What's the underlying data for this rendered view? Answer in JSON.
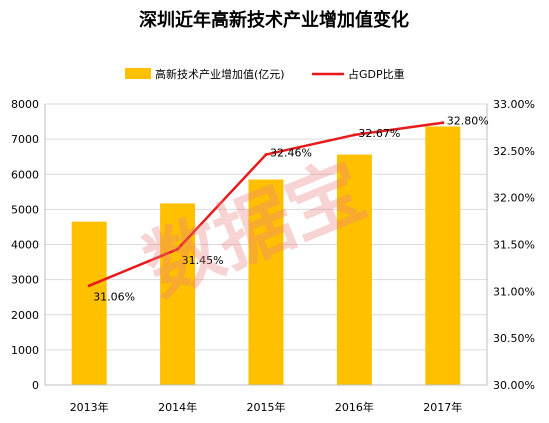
{
  "chart_data": {
    "type": "bar+line",
    "title": "深圳近年高新技术产业增加值变化",
    "categories": [
      "2013年",
      "2014年",
      "2015年",
      "2016年",
      "2017年"
    ],
    "series": [
      {
        "name": "高新技术产业增加值(亿元)",
        "type": "bar",
        "axis": "left",
        "color": "#FFC000",
        "values": [
          4650,
          5170,
          5850,
          6560,
          7360
        ]
      },
      {
        "name": "占GDP比重",
        "type": "line",
        "axis": "right",
        "color": "#E8191B",
        "values": [
          31.06,
          31.45,
          32.46,
          32.67,
          32.8
        ],
        "labels": [
          "31.06%",
          "31.45%",
          "32.46%",
          "32.67%",
          "32.80%"
        ]
      }
    ],
    "y_left": {
      "min": 0,
      "max": 8000,
      "ticks": [
        "0",
        "1000",
        "2000",
        "3000",
        "4000",
        "5000",
        "6000",
        "7000",
        "8000"
      ]
    },
    "y_right": {
      "min": 30,
      "max": 33,
      "ticks": [
        "30.00%",
        "30.50%",
        "31.00%",
        "31.50%",
        "32.00%",
        "32.50%",
        "33.00%"
      ]
    },
    "grid": true,
    "legend_position": "top",
    "watermark": "数据宝"
  }
}
